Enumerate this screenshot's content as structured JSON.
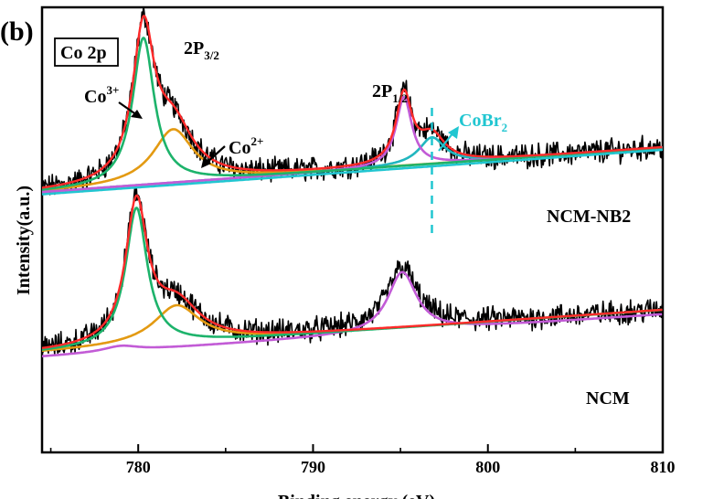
{
  "chart_data": {
    "type": "line",
    "panel_label": "(b)",
    "title": "Co 2p",
    "xlabel": "Binding energy (eV)",
    "ylabel": "Intensity(a.u.)",
    "xlim": [
      774.5,
      810
    ],
    "ylim": [
      0,
      1
    ],
    "x_ticks": [
      780,
      790,
      800,
      810
    ],
    "x_tick_labels": [
      "780",
      "790",
      "800",
      "810"
    ],
    "y_ticks_shown": false,
    "annotations": {
      "p32_main": "2P",
      "p32_sub": "3/2",
      "p12_main": "2P",
      "p12_sub": "1/2",
      "co3_main": "Co",
      "co3_sup": "3+",
      "co2_main": "Co",
      "co2_sup": "2+",
      "cobr_main": "CoBr",
      "cobr_sub": "2",
      "sample_top": "NCM-NB2",
      "sample_bottom": "NCM"
    },
    "cobr2_marker_x": 796.8,
    "colors": {
      "raw": "#000000",
      "envelope": "#ff2a2a",
      "co3": "#1db36b",
      "co2": "#e39a12",
      "p12": "#c25bd6",
      "cobr2": "#21b6bf",
      "background": "#21c6d1",
      "cobr2_label": "#21c6d1"
    },
    "series": [
      {
        "name": "NCM-NB2 raw",
        "sample": "NCM-NB2",
        "peaks": [
          {
            "center": 780.3,
            "height": 0.33,
            "width": 0.75
          },
          {
            "center": 782.0,
            "height": 0.12,
            "width": 1.4
          },
          {
            "center": 795.2,
            "height": 0.155,
            "width": 0.55
          },
          {
            "center": 796.8,
            "height": 0.06,
            "width": 0.9
          }
        ],
        "baseline": [
          0.585,
          0.685
        ]
      },
      {
        "name": "NCM raw",
        "sample": "NCM",
        "peaks": [
          {
            "center": 779.9,
            "height": 0.31,
            "width": 0.75
          },
          {
            "center": 782.2,
            "height": 0.085,
            "width": 1.6
          },
          {
            "center": 795.1,
            "height": 0.135,
            "width": 1.0
          }
        ],
        "baseline": [
          0.225,
          0.32
        ]
      }
    ]
  }
}
